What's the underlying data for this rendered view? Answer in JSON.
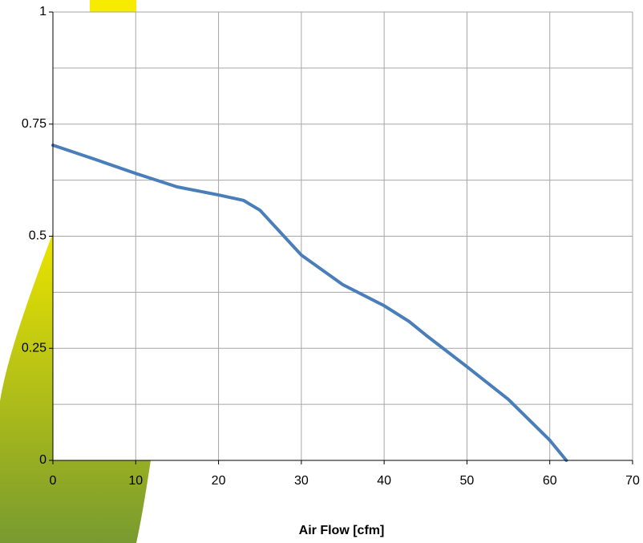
{
  "chart_data": {
    "type": "line",
    "x_label": "Air Flow [cfm]",
    "xlim": [
      0,
      70
    ],
    "xticks": [
      0,
      10,
      20,
      30,
      40,
      50,
      60,
      70
    ],
    "ylim": [
      0,
      1
    ],
    "yticks": [
      0,
      0.25,
      0.5,
      0.75,
      1
    ],
    "yminorticks": [
      0.125,
      0.375,
      0.625,
      0.875
    ],
    "grid": true,
    "series": [
      {
        "color": "#4a7ebb",
        "x": [
          0,
          5,
          10,
          15,
          20,
          23,
          25,
          30,
          35,
          40,
          43,
          45,
          50,
          55,
          60,
          62
        ],
        "values": [
          0.703,
          0.672,
          0.64,
          0.61,
          0.592,
          0.58,
          0.558,
          0.458,
          0.392,
          0.345,
          0.31,
          0.28,
          0.209,
          0.136,
          0.045,
          0
        ]
      }
    ]
  }
}
